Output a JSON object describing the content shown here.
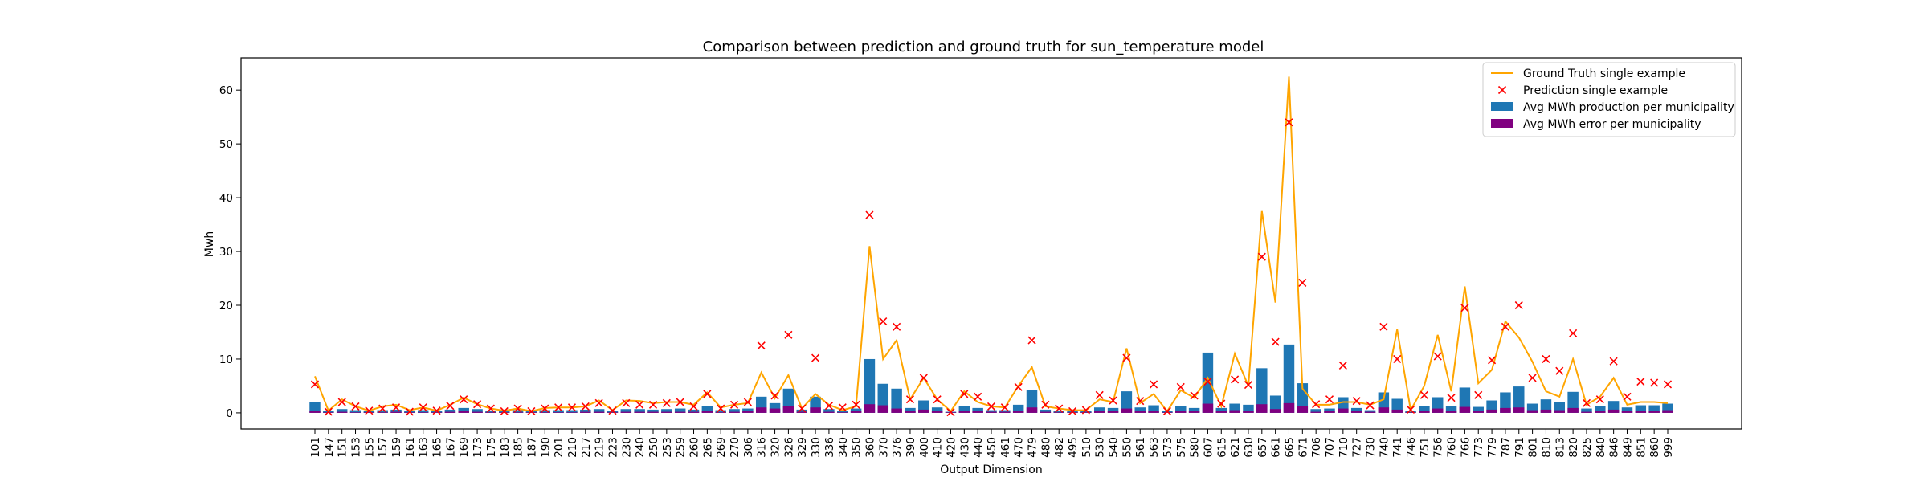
{
  "chart_data": {
    "type": "bar",
    "title": "Comparison between prediction and ground truth for sun_temperature model",
    "xlabel": "Output Dimension",
    "ylabel": "Mwh",
    "ylim": [
      -3,
      66
    ],
    "yticks": [
      0,
      10,
      20,
      30,
      40,
      50,
      60
    ],
    "legend_position": "top-right",
    "colors": {
      "ground_truth": "#ffa500",
      "prediction": "#ff0000",
      "production": "#1f77b4",
      "error": "#800080"
    },
    "categories": [
      "101",
      "147",
      "151",
      "153",
      "155",
      "157",
      "159",
      "161",
      "163",
      "165",
      "167",
      "169",
      "173",
      "175",
      "183",
      "185",
      "187",
      "190",
      "201",
      "210",
      "217",
      "219",
      "223",
      "230",
      "240",
      "250",
      "253",
      "259",
      "260",
      "265",
      "269",
      "270",
      "306",
      "316",
      "320",
      "326",
      "329",
      "330",
      "336",
      "340",
      "350",
      "360",
      "370",
      "376",
      "390",
      "400",
      "410",
      "420",
      "430",
      "440",
      "450",
      "461",
      "470",
      "479",
      "480",
      "482",
      "495",
      "510",
      "530",
      "540",
      "550",
      "561",
      "563",
      "573",
      "575",
      "580",
      "607",
      "615",
      "621",
      "630",
      "657",
      "661",
      "665",
      "671",
      "706",
      "707",
      "710",
      "727",
      "730",
      "740",
      "741",
      "746",
      "751",
      "756",
      "760",
      "766",
      "773",
      "779",
      "787",
      "791",
      "801",
      "810",
      "813",
      "820",
      "825",
      "840",
      "846",
      "849",
      "851",
      "860",
      "999"
    ],
    "series": [
      {
        "name": "Ground Truth single example",
        "kind": "line",
        "values": [
          6.8,
          0.4,
          2.5,
          1.2,
          0.4,
          1.2,
          1.5,
          0.5,
          1.0,
          0.4,
          1.5,
          2.8,
          1.6,
          0.8,
          0.4,
          0.8,
          0.3,
          0.9,
          1.0,
          1.0,
          1.2,
          2.3,
          0.5,
          2.3,
          2.2,
          1.8,
          2.0,
          2.0,
          1.5,
          3.8,
          1.0,
          1.5,
          1.8,
          7.5,
          2.7,
          7.0,
          0.8,
          3.5,
          1.5,
          0.5,
          1.2,
          31.0,
          10.0,
          13.5,
          2.5,
          6.5,
          2.5,
          0.3,
          4.0,
          2.0,
          1.2,
          1.0,
          5.0,
          8.5,
          1.2,
          0.8,
          0.5,
          0.5,
          2.5,
          2.0,
          12.0,
          1.8,
          3.5,
          0.3,
          4.2,
          2.8,
          6.5,
          1.2,
          11.0,
          5.0,
          37.5,
          20.5,
          62.5,
          4.5,
          1.5,
          1.5,
          2.0,
          2.0,
          1.5,
          2.5,
          15.5,
          0.5,
          5.0,
          14.5,
          4.0,
          23.5,
          5.5,
          8.0,
          17.0,
          14.0,
          9.5,
          4.0,
          3.0,
          10.0,
          1.5,
          3.0,
          6.5,
          1.5,
          2.0,
          2.0,
          1.8
        ]
      },
      {
        "name": "Prediction single example",
        "kind": "scatter",
        "values": [
          5.3,
          0.2,
          2.0,
          1.2,
          0.4,
          0.8,
          1.0,
          0.2,
          1.0,
          0.4,
          1.3,
          2.5,
          1.6,
          0.8,
          0.3,
          0.8,
          0.3,
          0.8,
          1.0,
          1.0,
          1.2,
          1.8,
          0.4,
          1.8,
          1.5,
          1.5,
          1.8,
          2.0,
          1.2,
          3.5,
          0.8,
          1.5,
          2.0,
          12.5,
          3.2,
          14.5,
          0.8,
          10.2,
          1.3,
          1.0,
          1.5,
          36.8,
          17.0,
          16.0,
          2.5,
          6.5,
          2.5,
          0.1,
          3.5,
          3.0,
          1.2,
          1.0,
          4.8,
          13.5,
          1.5,
          0.8,
          0.3,
          0.5,
          3.3,
          2.3,
          10.2,
          2.2,
          5.3,
          0.3,
          4.8,
          3.2,
          5.8,
          1.7,
          6.2,
          5.2,
          29.0,
          13.2,
          54.0,
          24.2,
          1.6,
          2.5,
          8.8,
          2.2,
          1.4,
          16.0,
          10.0,
          0.6,
          3.3,
          10.5,
          2.8,
          19.5,
          3.3,
          9.8,
          16.0,
          20.0,
          6.5,
          10.0,
          7.8,
          14.8,
          1.8,
          2.5,
          9.6,
          3.0,
          5.8,
          5.6,
          5.3
        ]
      },
      {
        "name": "Avg MWh production per municipality",
        "kind": "bar",
        "values": [
          2.0,
          0.4,
          0.7,
          0.5,
          0.4,
          0.5,
          0.6,
          0.3,
          0.5,
          0.4,
          0.6,
          0.9,
          0.7,
          0.4,
          0.3,
          0.5,
          0.3,
          0.5,
          0.5,
          0.5,
          0.6,
          0.7,
          0.4,
          0.7,
          0.7,
          0.6,
          0.7,
          0.8,
          0.6,
          1.3,
          0.5,
          0.7,
          0.8,
          3.0,
          1.8,
          4.5,
          0.6,
          3.0,
          0.7,
          0.4,
          0.8,
          10.0,
          5.4,
          4.5,
          0.9,
          2.3,
          1.0,
          0.2,
          1.2,
          0.9,
          0.5,
          0.5,
          1.5,
          4.3,
          0.6,
          0.4,
          0.3,
          0.3,
          1.0,
          0.9,
          4.0,
          1.0,
          1.4,
          0.3,
          1.2,
          0.9,
          11.2,
          0.9,
          1.7,
          1.5,
          8.3,
          3.2,
          12.7,
          5.5,
          0.7,
          0.8,
          2.9,
          0.9,
          0.5,
          3.8,
          2.6,
          0.4,
          1.2,
          2.9,
          1.3,
          4.7,
          1.1,
          2.3,
          3.8,
          4.9,
          1.7,
          2.5,
          2.0,
          3.9,
          0.8,
          1.3,
          2.2,
          1.0,
          1.4,
          1.4,
          1.7
        ]
      },
      {
        "name": "Avg MWh error per municipality",
        "kind": "bar",
        "values": [
          0.4,
          0.1,
          0.2,
          0.1,
          0.1,
          0.1,
          0.2,
          0.1,
          0.1,
          0.1,
          0.2,
          0.3,
          0.2,
          0.1,
          0.1,
          0.1,
          0.1,
          0.1,
          0.1,
          0.1,
          0.2,
          0.2,
          0.1,
          0.2,
          0.2,
          0.2,
          0.2,
          0.2,
          0.2,
          0.4,
          0.1,
          0.2,
          0.3,
          1.0,
          0.8,
          1.2,
          0.2,
          1.0,
          0.2,
          0.1,
          0.3,
          1.6,
          1.4,
          0.8,
          0.3,
          0.6,
          0.3,
          0.1,
          0.3,
          0.3,
          0.2,
          0.2,
          0.4,
          1.0,
          0.2,
          0.1,
          0.1,
          0.1,
          0.3,
          0.3,
          0.8,
          0.3,
          0.4,
          0.1,
          0.4,
          0.3,
          1.7,
          0.3,
          0.5,
          0.4,
          1.6,
          0.7,
          1.8,
          1.2,
          0.2,
          0.3,
          0.8,
          0.3,
          0.2,
          1.0,
          0.6,
          0.1,
          0.3,
          0.8,
          0.4,
          1.1,
          0.3,
          0.6,
          0.9,
          1.0,
          0.5,
          0.6,
          0.5,
          0.9,
          0.2,
          0.4,
          0.6,
          0.3,
          0.4,
          0.4,
          0.5
        ]
      }
    ]
  }
}
